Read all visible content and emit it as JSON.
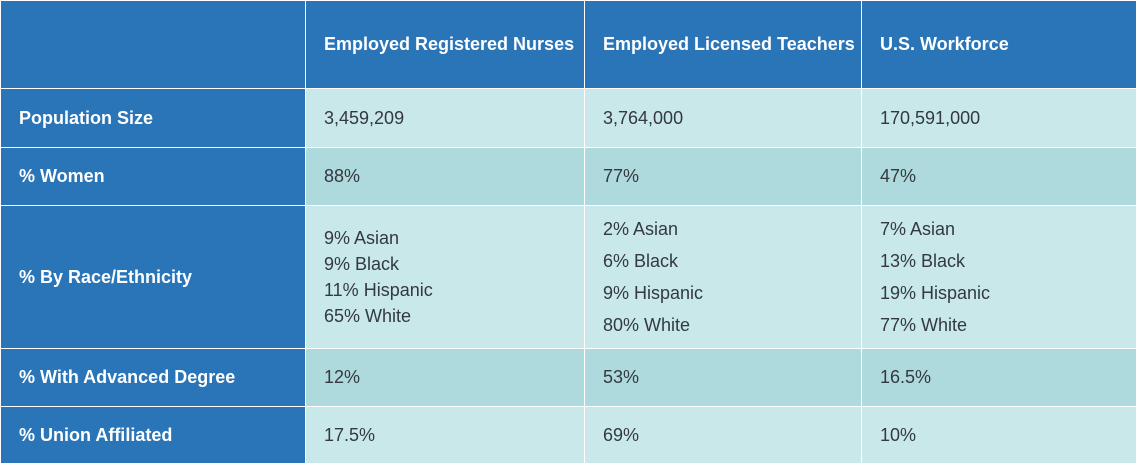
{
  "columns": [
    "Employed Registered Nurses",
    "Employed Licensed Teachers",
    "U.S. Workforce"
  ],
  "rows": {
    "population": {
      "label": "Population Size",
      "values": [
        "3,459,209",
        "3,764,000",
        "170,591,000"
      ]
    },
    "women": {
      "label": "% Women",
      "values": [
        "88%",
        "77%",
        "47%"
      ]
    },
    "race": {
      "label": "% By Race/Ethnicity",
      "values": [
        [
          "9% Asian",
          "9% Black",
          "11% Hispanic",
          "65% White"
        ],
        [
          "2% Asian",
          "6% Black",
          "9% Hispanic",
          "80% White"
        ],
        [
          "7% Asian",
          "13% Black",
          "19% Hispanic",
          "77% White"
        ]
      ]
    },
    "advanced": {
      "label": "% With Advanced Degree",
      "values": [
        "12%",
        "53%",
        "16.5%"
      ]
    },
    "union": {
      "label": "% Union Affiliated",
      "values": [
        "17.5%",
        "69%",
        "10%"
      ]
    }
  },
  "colors": {
    "header_blue": "#2a74b8",
    "row_light": "#c9e8ea",
    "row_dark": "#aedadd",
    "text_dark": "#33393f"
  }
}
